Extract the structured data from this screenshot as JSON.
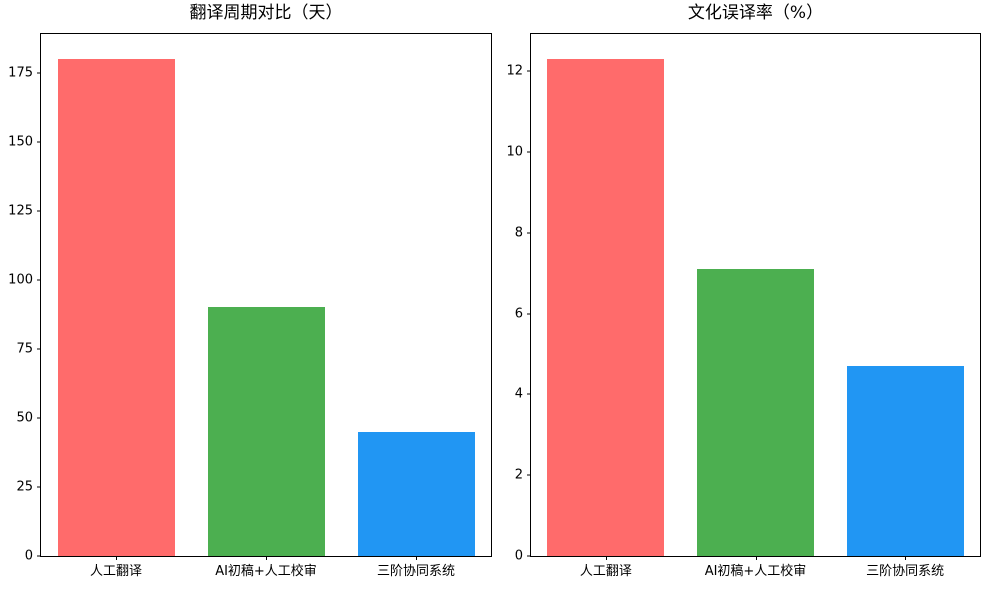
{
  "figure": {
    "background": "#ffffff",
    "axis_color": "#000000"
  },
  "chart_data": [
    {
      "type": "bar",
      "title": "翻译周期对比（天）",
      "categories": [
        "人工翻译",
        "AI初稿+人工校审",
        "三阶协同系统"
      ],
      "values": [
        180,
        90,
        45
      ],
      "bar_colors": [
        "#FF6B6B",
        "#4CAF50",
        "#2196F3"
      ],
      "yticks": [
        0,
        25,
        50,
        75,
        100,
        125,
        150,
        175
      ],
      "ylim": [
        0,
        189
      ],
      "xlabel": "",
      "ylabel": "",
      "grid": false,
      "legend": null
    },
    {
      "type": "bar",
      "title": "文化误译率（%）",
      "categories": [
        "人工翻译",
        "AI初稿+人工校审",
        "三阶协同系统"
      ],
      "values": [
        12.3,
        7.1,
        4.7
      ],
      "bar_colors": [
        "#FF6B6B",
        "#4CAF50",
        "#2196F3"
      ],
      "yticks": [
        0,
        2,
        4,
        6,
        8,
        10,
        12
      ],
      "ylim": [
        0,
        12.92
      ],
      "xlabel": "",
      "ylabel": "",
      "grid": false,
      "legend": null
    }
  ]
}
